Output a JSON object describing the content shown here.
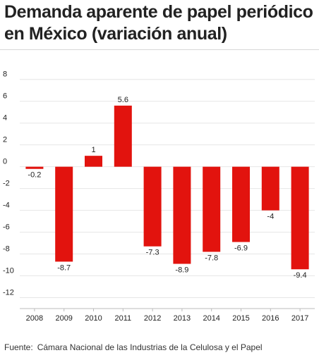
{
  "header": {
    "title_line1": "Demanda aparente de papel periódico",
    "title_line2": "en México (variación anual)"
  },
  "footer": {
    "source_prefix": "Fuente:",
    "source_text": "Cámara Nacional de las Industrias de la Celulosa y el Papel"
  },
  "colors": {
    "bar": "#e2130e",
    "grid": "#e6e6e6",
    "text": "#222222"
  },
  "chart_data": {
    "type": "bar",
    "categories": [
      "2008",
      "2009",
      "2010",
      "2011",
      "2012",
      "2013",
      "2014",
      "2015",
      "2016",
      "2017"
    ],
    "values": [
      -0.2,
      -8.7,
      1,
      5.6,
      -7.3,
      -8.9,
      -7.8,
      -6.9,
      -4,
      -9.4
    ],
    "data_labels": [
      "-0.2",
      "-8.7",
      "1",
      "5.6",
      "-7.3",
      "-8.9",
      "-7.8",
      "-6.9",
      "-4",
      "-9.4"
    ],
    "yticks": [
      8,
      6,
      4,
      2,
      0,
      -2,
      -4,
      -6,
      -8,
      -10,
      -12
    ],
    "ytick_labels": [
      "8",
      "6",
      "4",
      "2",
      "0",
      "-2",
      "-4",
      "-6",
      "-8",
      "-10",
      "-12"
    ],
    "ylim": [
      -13,
      8.5
    ],
    "grid": true,
    "legend": "none"
  }
}
